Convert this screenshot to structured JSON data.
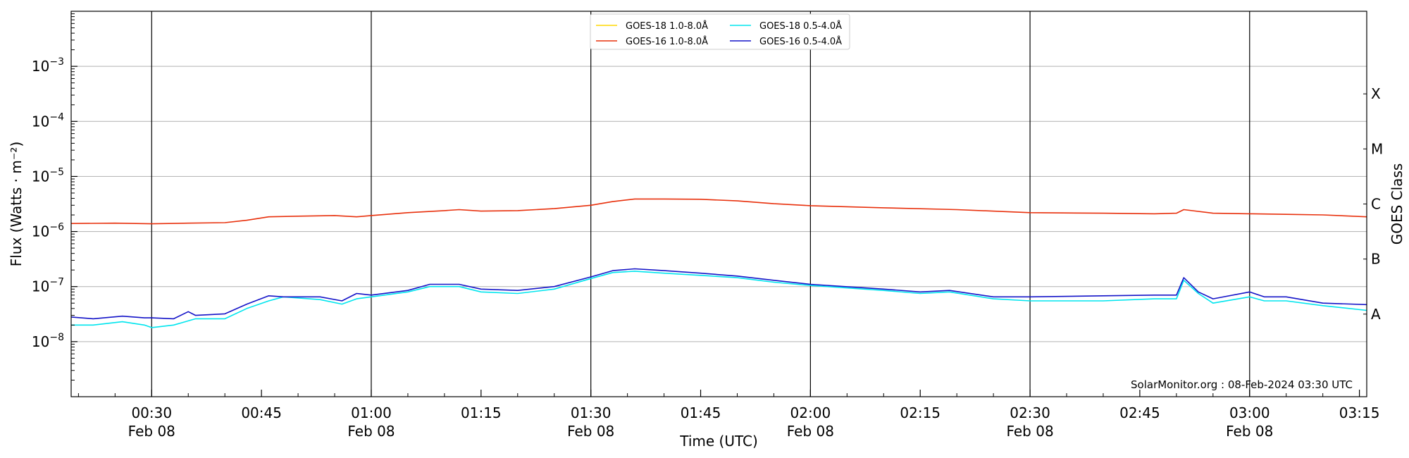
{
  "chart_data": {
    "type": "line",
    "xlabel": "Time (UTC)",
    "ylabel": "Flux (Watts · m⁻²)",
    "right_label": "GOES Class",
    "credit": "SolarMonitor.org : 08-Feb-2024 03:30 UTC",
    "x_range": [
      "2024-02-08 00:19",
      "2024-02-08 03:16"
    ],
    "y_range": [
      1e-09,
      0.01
    ],
    "y_scale": "log",
    "grid": "horizontal",
    "legend_position": "top-center",
    "x_ticks": [
      {
        "time": "00:30",
        "line1": "00:30",
        "line2": "Feb 08"
      },
      {
        "time": "00:45",
        "line1": "00:45",
        "line2": ""
      },
      {
        "time": "01:00",
        "line1": "01:00",
        "line2": "Feb 08"
      },
      {
        "time": "01:15",
        "line1": "01:15",
        "line2": ""
      },
      {
        "time": "01:30",
        "line1": "01:30",
        "line2": "Feb 08"
      },
      {
        "time": "01:45",
        "line1": "01:45",
        "line2": ""
      },
      {
        "time": "02:00",
        "line1": "02:00",
        "line2": "Feb 08"
      },
      {
        "time": "02:15",
        "line1": "02:15",
        "line2": ""
      },
      {
        "time": "02:30",
        "line1": "02:30",
        "line2": "Feb 08"
      },
      {
        "time": "02:45",
        "line1": "02:45",
        "line2": ""
      },
      {
        "time": "03:00",
        "line1": "03:00",
        "line2": "Feb 08"
      },
      {
        "time": "03:15",
        "line1": "03:15",
        "line2": ""
      }
    ],
    "vertical_lines": [
      "00:30",
      "01:00",
      "01:30",
      "02:00",
      "02:30",
      "03:00"
    ],
    "y_ticks": [
      {
        "exp": -3,
        "value": 0.001
      },
      {
        "exp": -4,
        "value": 0.0001
      },
      {
        "exp": -5,
        "value": 1e-05
      },
      {
        "exp": -6,
        "value": 1e-06
      },
      {
        "exp": -7,
        "value": 1e-07
      },
      {
        "exp": -8,
        "value": 1e-08
      }
    ],
    "goes_classes": [
      {
        "label": "X",
        "value": 0.0003162
      },
      {
        "label": "M",
        "value": 3.162e-05
      },
      {
        "label": "C",
        "value": 3.162e-06
      },
      {
        "label": "B",
        "value": 3.162e-07
      },
      {
        "label": "A",
        "value": 3.162e-08
      }
    ],
    "series": [
      {
        "name": "GOES-18 1.0-8.0Å",
        "color": "#ffd700",
        "x": [],
        "y": []
      },
      {
        "name": "GOES-16 1.0-8.0Å",
        "color": "#e8300c",
        "x": [
          "00:19",
          "00:25",
          "00:30",
          "00:35",
          "00:40",
          "00:43",
          "00:46",
          "00:50",
          "00:55",
          "00:58",
          "01:00",
          "01:05",
          "01:10",
          "01:12",
          "01:15",
          "01:20",
          "01:25",
          "01:30",
          "01:33",
          "01:36",
          "01:40",
          "01:45",
          "01:50",
          "01:55",
          "02:00",
          "02:10",
          "02:20",
          "02:30",
          "02:40",
          "02:47",
          "02:50",
          "02:51",
          "02:55",
          "03:00",
          "03:05",
          "03:10",
          "03:16"
        ],
        "y": [
          1.4e-06,
          1.42e-06,
          1.38e-06,
          1.42e-06,
          1.45e-06,
          1.6e-06,
          1.85e-06,
          1.9e-06,
          1.95e-06,
          1.85e-06,
          1.95e-06,
          2.2e-06,
          2.4e-06,
          2.5e-06,
          2.35e-06,
          2.4e-06,
          2.6e-06,
          3e-06,
          3.5e-06,
          3.9e-06,
          3.9e-06,
          3.85e-06,
          3.6e-06,
          3.2e-06,
          2.95e-06,
          2.7e-06,
          2.5e-06,
          2.2e-06,
          2.15e-06,
          2.1e-06,
          2.15e-06,
          2.5e-06,
          2.15e-06,
          2.1e-06,
          2.05e-06,
          2e-06,
          1.85e-06
        ]
      },
      {
        "name": "GOES-18 0.5-4.0Å",
        "color": "#00e5ee",
        "x": [
          "00:19",
          "00:22",
          "00:26",
          "00:29",
          "00:30",
          "00:33",
          "00:36",
          "00:40",
          "00:43",
          "00:46",
          "00:48",
          "00:53",
          "00:56",
          "00:58",
          "01:00",
          "01:05",
          "01:08",
          "01:12",
          "01:15",
          "01:20",
          "01:25",
          "01:30",
          "01:33",
          "01:36",
          "01:40",
          "01:45",
          "01:50",
          "01:55",
          "02:00",
          "02:10",
          "02:15",
          "02:19",
          "02:25",
          "02:30",
          "02:40",
          "02:47",
          "02:50",
          "02:51",
          "02:53",
          "02:55",
          "03:00",
          "03:02",
          "03:05",
          "03:10",
          "03:16"
        ],
        "y": [
          2e-08,
          2e-08,
          2.3e-08,
          2e-08,
          1.8e-08,
          2e-08,
          2.6e-08,
          2.6e-08,
          4e-08,
          5.5e-08,
          6.5e-08,
          5.8e-08,
          4.8e-08,
          6e-08,
          6.5e-08,
          8e-08,
          1e-07,
          1e-07,
          8e-08,
          7.5e-08,
          9e-08,
          1.4e-07,
          1.8e-07,
          1.9e-07,
          1.75e-07,
          1.6e-07,
          1.45e-07,
          1.2e-07,
          1.05e-07,
          8.5e-08,
          7.5e-08,
          8e-08,
          6e-08,
          5.5e-08,
          5.5e-08,
          6e-08,
          6e-08,
          1.3e-07,
          7.5e-08,
          5e-08,
          6.5e-08,
          5.5e-08,
          5.5e-08,
          4.5e-08,
          3.7e-08
        ]
      },
      {
        "name": "GOES-16 0.5-4.0Å",
        "color": "#1414c8",
        "x": [
          "00:19",
          "00:22",
          "00:26",
          "00:29",
          "00:30",
          "00:33",
          "00:35",
          "00:36",
          "00:40",
          "00:43",
          "00:46",
          "00:48",
          "00:53",
          "00:56",
          "00:58",
          "01:00",
          "01:05",
          "01:08",
          "01:12",
          "01:15",
          "01:20",
          "01:25",
          "01:30",
          "01:33",
          "01:36",
          "01:40",
          "01:45",
          "01:50",
          "01:55",
          "02:00",
          "02:10",
          "02:15",
          "02:19",
          "02:25",
          "02:30",
          "02:40",
          "02:47",
          "02:50",
          "02:51",
          "02:53",
          "02:55",
          "03:00",
          "03:02",
          "03:05",
          "03:10",
          "03:16"
        ],
        "y": [
          2.8e-08,
          2.6e-08,
          2.9e-08,
          2.7e-08,
          2.7e-08,
          2.6e-08,
          3.5e-08,
          3e-08,
          3.2e-08,
          4.8e-08,
          6.8e-08,
          6.5e-08,
          6.5e-08,
          5.5e-08,
          7.5e-08,
          7e-08,
          8.5e-08,
          1.1e-07,
          1.1e-07,
          9e-08,
          8.5e-08,
          1e-07,
          1.5e-07,
          1.95e-07,
          2.1e-07,
          1.95e-07,
          1.75e-07,
          1.55e-07,
          1.3e-07,
          1.1e-07,
          9e-08,
          8e-08,
          8.5e-08,
          6.5e-08,
          6.5e-08,
          6.8e-08,
          7e-08,
          7e-08,
          1.45e-07,
          8e-08,
          6e-08,
          8e-08,
          6.5e-08,
          6.5e-08,
          5e-08,
          4.7e-08
        ]
      }
    ]
  }
}
